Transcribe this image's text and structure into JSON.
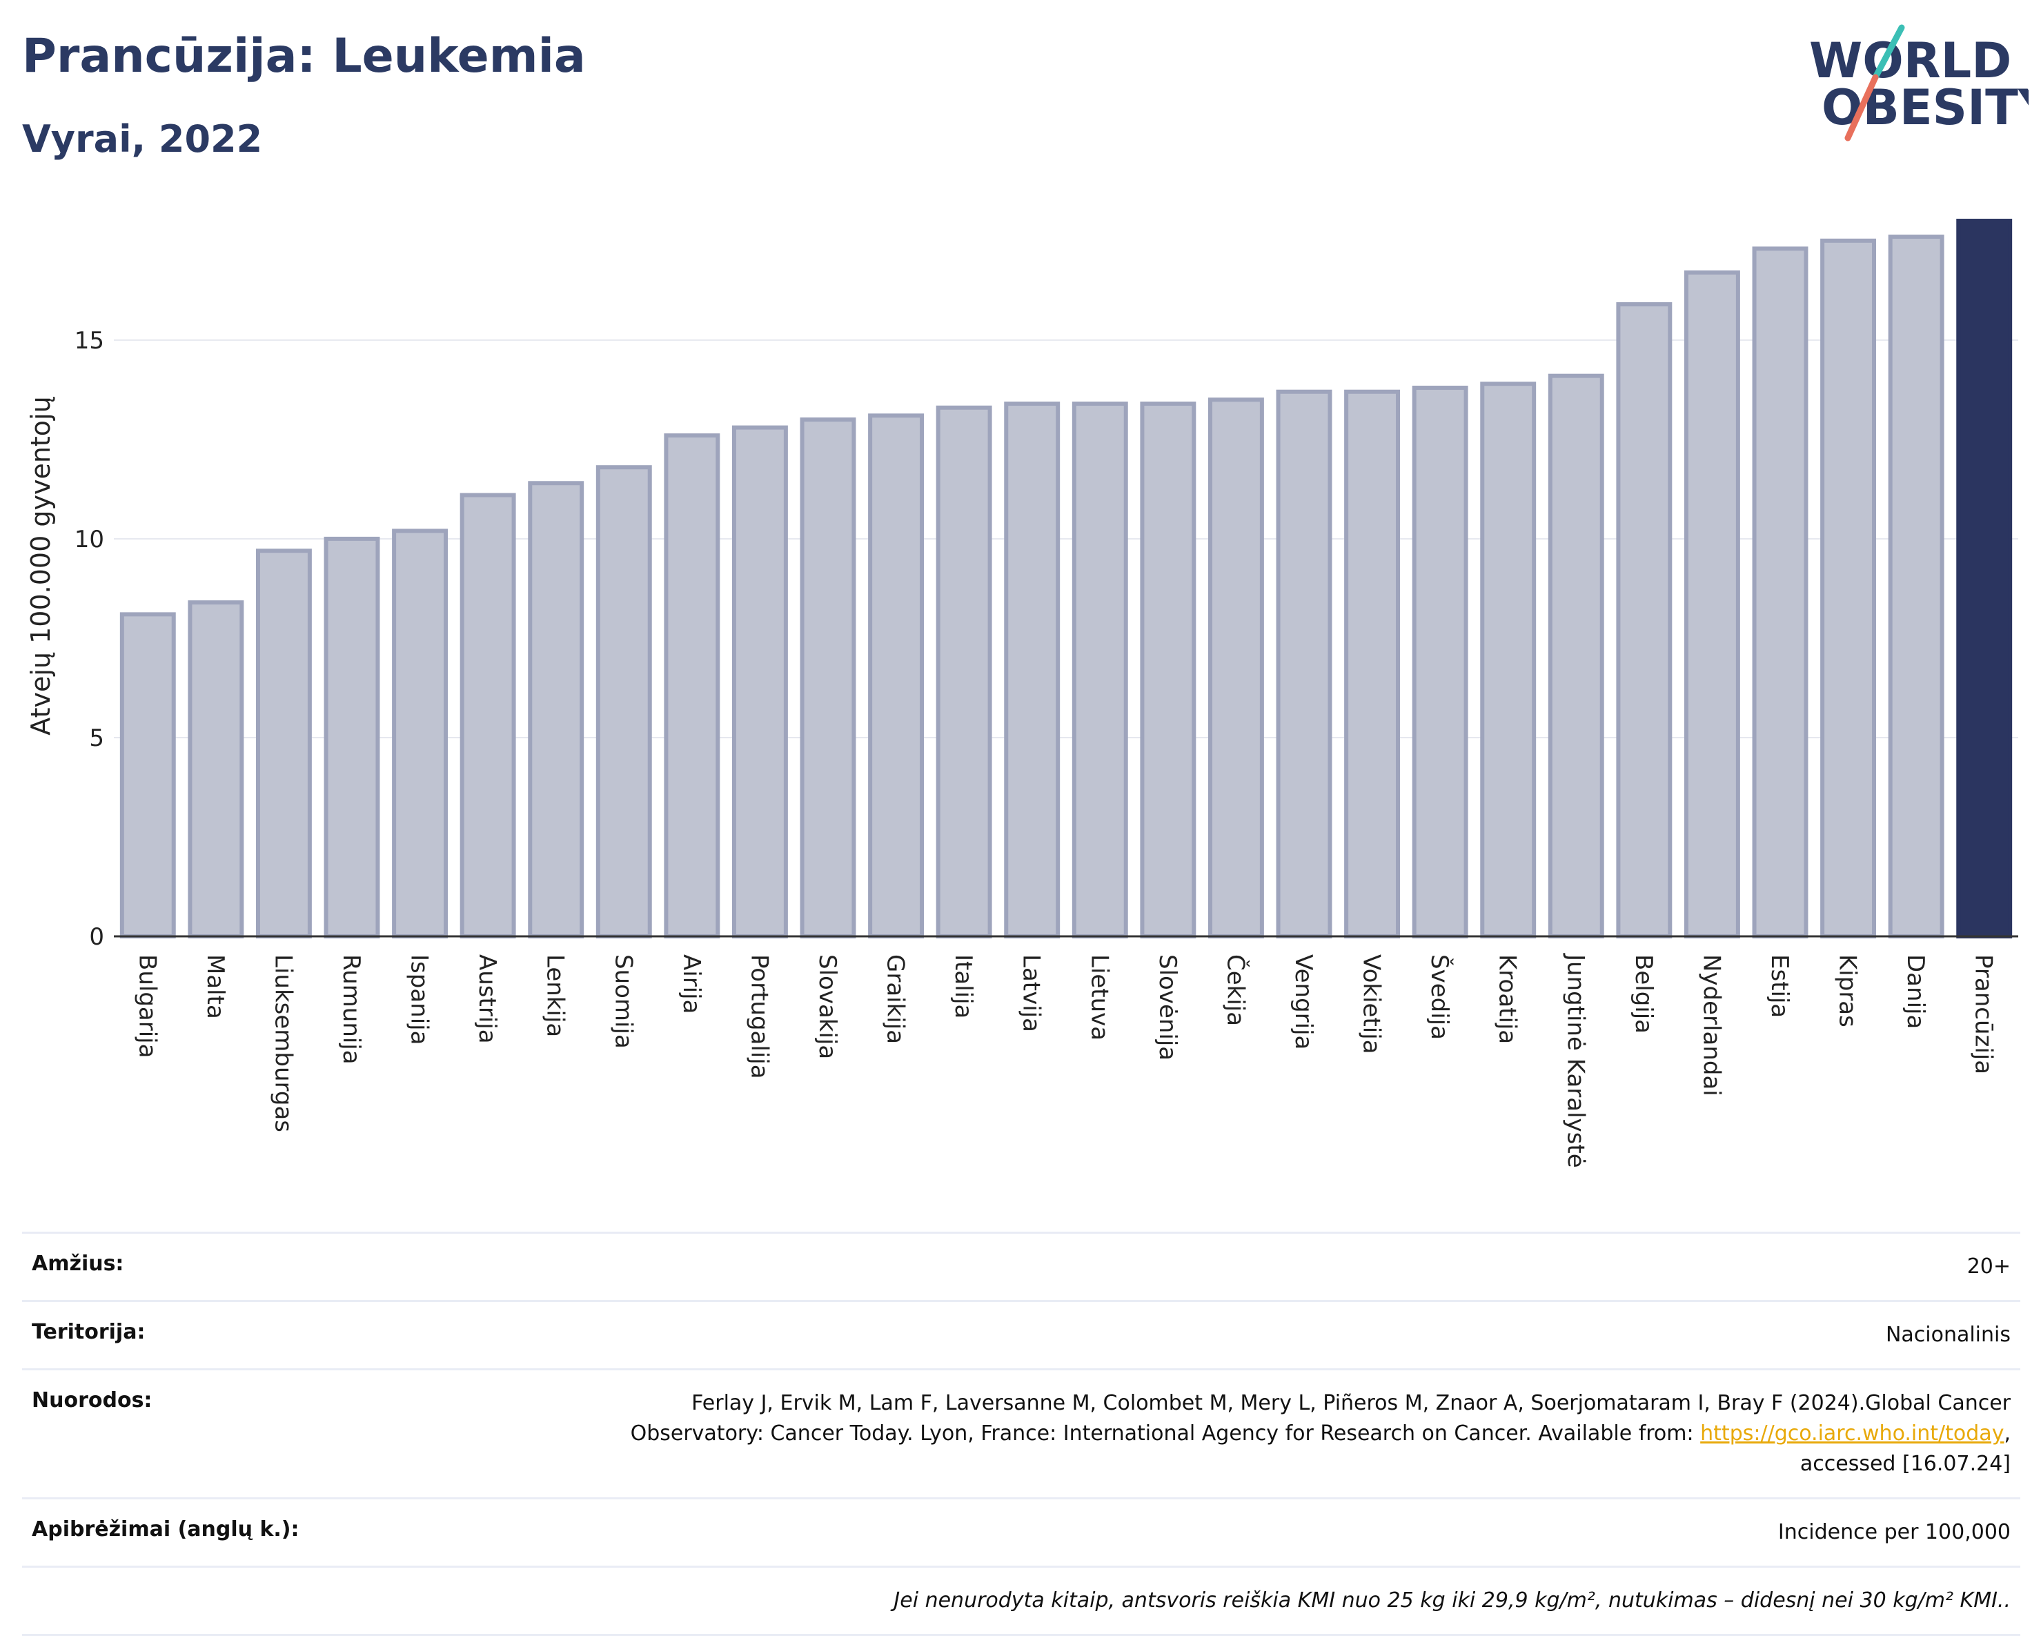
{
  "header": {
    "title": "Prancūzija: Leukemia",
    "subtitle": "Vyrai, 2022"
  },
  "logo": {
    "line1": "WORLD",
    "line2": "OBESITY"
  },
  "colors": {
    "bar": "#bfc3d1",
    "bar_border": "#9ea4bc",
    "highlight": "#2b3560",
    "grid": "#e6e8ef",
    "title": "#2b3a63"
  },
  "chart_data": {
    "type": "bar",
    "title": "Prancūzija: Leukemia",
    "subtitle": "Vyrai, 2022",
    "ylabel": "Atvejų 100.000 gyventojų",
    "ylim": [
      0,
      18
    ],
    "yticks": [
      0,
      5,
      10,
      15
    ],
    "grid": true,
    "highlight": "Prancūzija",
    "categories": [
      "Bulgarija",
      "Malta",
      "Liuksemburgas",
      "Rumunija",
      "Ispanija",
      "Austrija",
      "Lenkija",
      "Suomija",
      "Airija",
      "Portugalija",
      "Slovakija",
      "Graikija",
      "Italija",
      "Latvija",
      "Lietuva",
      "Slovėnija",
      "Čekija",
      "Vengrija",
      "Vokietija",
      "Švedija",
      "Kroatija",
      "Jungtinė Karalystė",
      "Belgija",
      "Nyderlandai",
      "Estija",
      "Kipras",
      "Danija",
      "Prancūzija"
    ],
    "values": [
      8.1,
      8.4,
      9.7,
      10.0,
      10.2,
      11.1,
      11.4,
      11.8,
      12.6,
      12.8,
      13.0,
      13.1,
      13.3,
      13.4,
      13.4,
      13.4,
      13.5,
      13.7,
      13.7,
      13.8,
      13.9,
      14.1,
      15.9,
      16.7,
      17.3,
      17.5,
      17.6,
      18.0
    ]
  },
  "meta": [
    {
      "label": "Amžius:",
      "value": "20+"
    },
    {
      "label": "Teritorija:",
      "value": "Nacionalinis"
    },
    {
      "label": "Nuorodos:",
      "ref_line1": "Ferlay J, Ervik M, Lam F, Laversanne M, Colombet M, Mery L, Piñeros M, Znaor A, Soerjomataram I, Bray F (2024).Global Cancer",
      "ref_line2": "Observatory: Cancer Today. Lyon, France: International Agency for Research on Cancer. Available from: ",
      "ref_link": "https://gco.iarc.who.int/today",
      "ref_line2_end": ",",
      "ref_line3": "accessed [16.07.24]"
    },
    {
      "label": "Apibrėžimai (anglų k.):",
      "value": "Incidence per 100,000"
    }
  ],
  "note": "Jei nenurodyta kitaip, antsvoris reiškia KMI nuo 25 kg iki 29,9 kg/m², nutukimas – didesnį nei 30 kg/m² KMI.."
}
